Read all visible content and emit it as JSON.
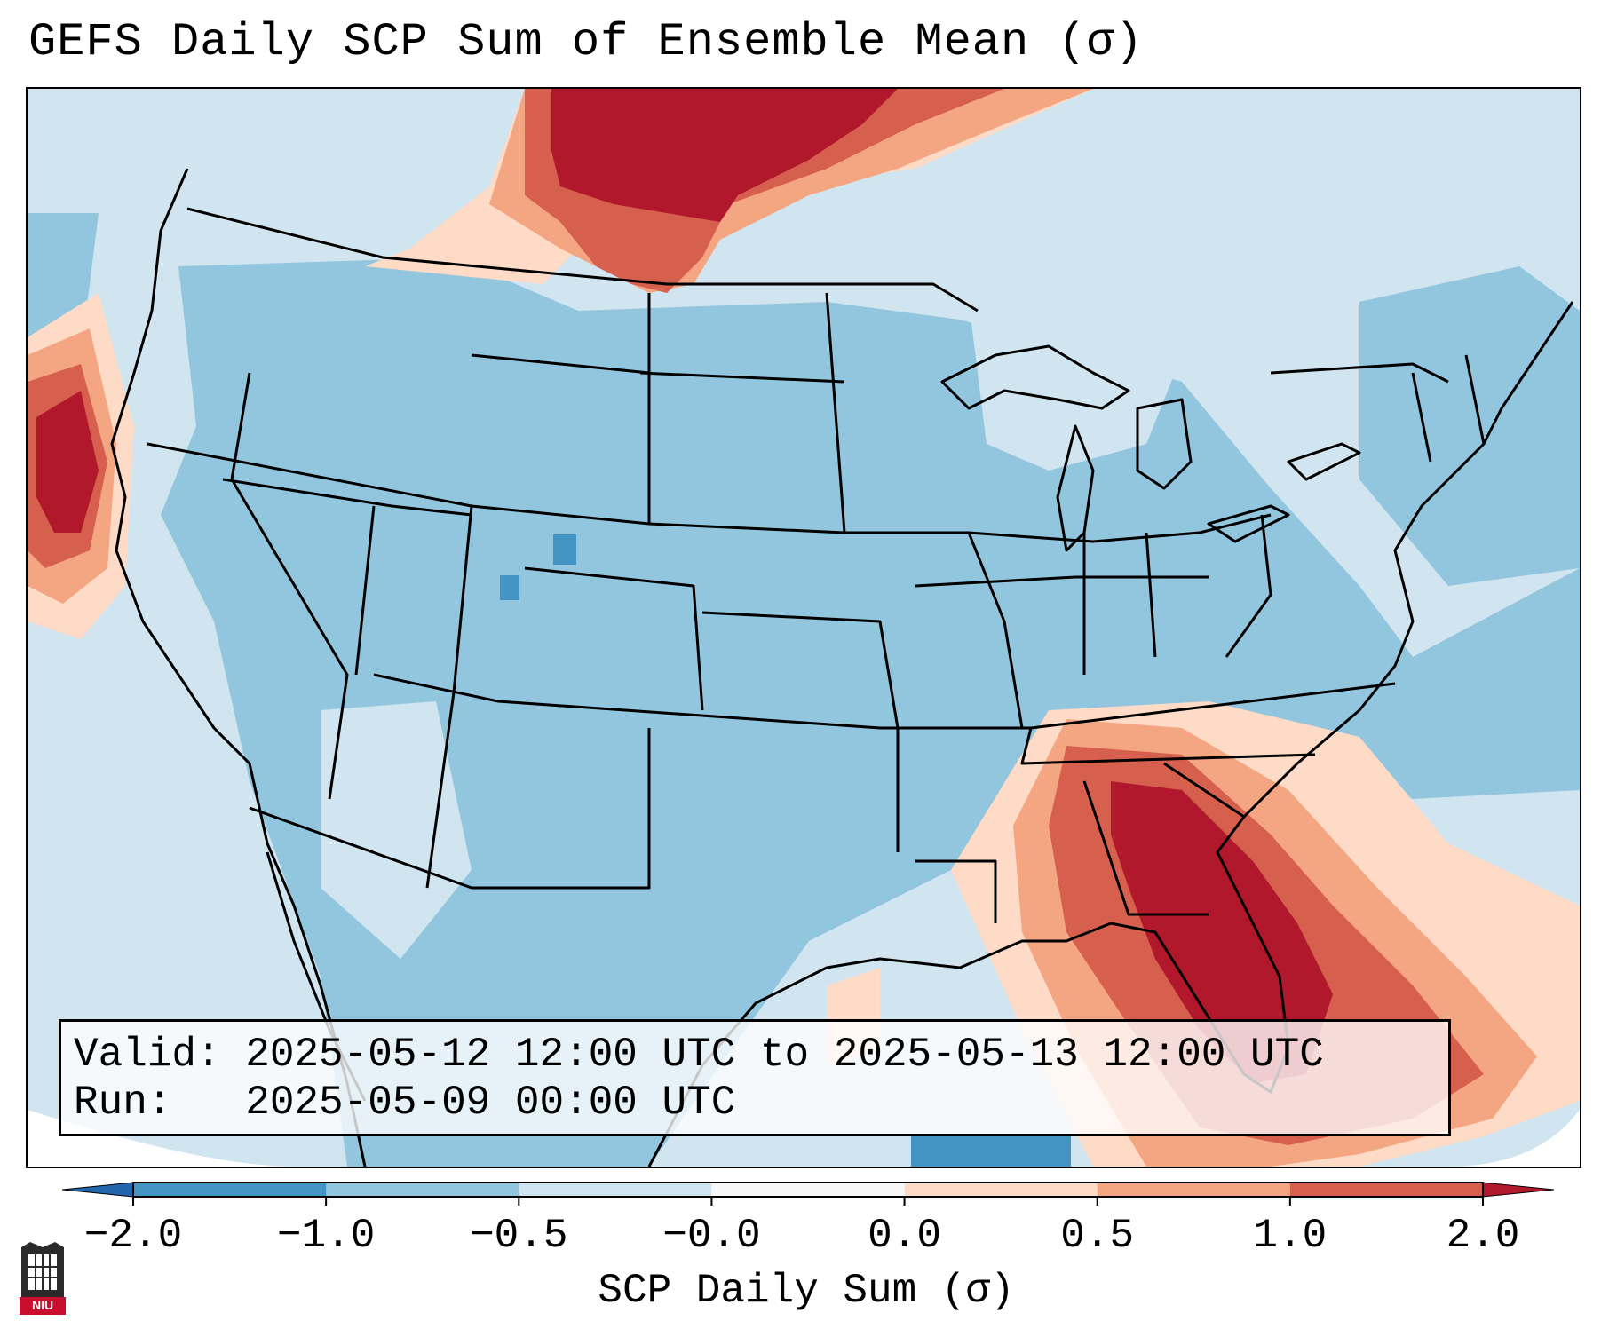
{
  "title": "GEFS Daily SCP Sum of Ensemble Mean (σ)",
  "info": {
    "valid_line": "Valid: 2025-05-12 12:00 UTC to 2025-05-13 12:00 UTC",
    "run_line": "Run:   2025-05-09 00:00 UTC"
  },
  "colorbar": {
    "label": "SCP Daily Sum (σ)",
    "ticks": [
      "−2.0",
      "−1.0",
      "−0.5",
      "−0.0",
      "0.0",
      "0.5",
      "1.0",
      "2.0"
    ],
    "bins": [
      {
        "color": "#4393c3"
      },
      {
        "color": "#92c5de"
      },
      {
        "color": "#d1e5f0"
      },
      {
        "color": "#f7f7f7"
      },
      {
        "color": "#fddbc7"
      },
      {
        "color": "#f4a582"
      },
      {
        "color": "#d6604d"
      }
    ],
    "under_color": "#2166ac",
    "over_color": "#b2182b"
  },
  "logo": {
    "text": "NIU"
  }
}
